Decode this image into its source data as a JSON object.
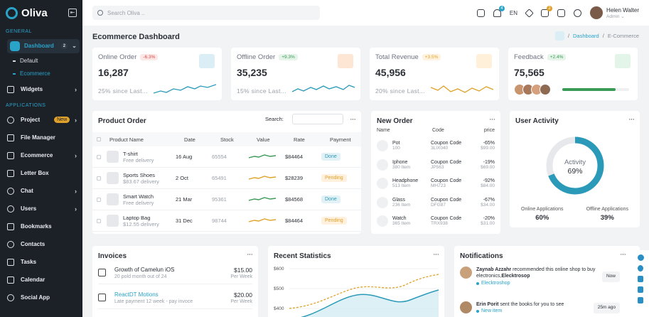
{
  "app": {
    "name": "Oliva"
  },
  "sidebar": {
    "general_label": "GENERAL",
    "dashboard_label": "Dashboard",
    "dashboard_sub": [
      "Default",
      "Ecommerce"
    ],
    "widgets_label": "Widgets",
    "applications_label": "APPLICATIONS",
    "items": [
      {
        "label": "Project",
        "badge": "New"
      },
      {
        "label": "File Manager"
      },
      {
        "label": "Ecommerce"
      },
      {
        "label": "Letter Box"
      },
      {
        "label": "Chat"
      },
      {
        "label": "Users"
      },
      {
        "label": "Bookmarks"
      },
      {
        "label": "Contacts"
      },
      {
        "label": "Tasks"
      },
      {
        "label": "Calendar"
      },
      {
        "label": "Social App"
      }
    ]
  },
  "topbar": {
    "search_placeholder": "Search Oliva ..",
    "notif_count": "4",
    "lang": "EN",
    "cart_count": "2",
    "user_name": "Helen Walter",
    "user_role": "Admin"
  },
  "page": {
    "title": "Ecommerce Dashboard",
    "crumb_1": "Dashboard",
    "crumb_2": "E-Commerce"
  },
  "stats": [
    {
      "label": "Online Order",
      "change": "-6.3%",
      "value": "16,287",
      "since": "25% since Last...",
      "color": "#2a9ab8"
    },
    {
      "label": "Offline Order",
      "change": "+9.3%",
      "value": "35,235",
      "since": "15% since Last...",
      "color": "#2a9ab8"
    },
    {
      "label": "Total Revenue",
      "change": "+3.5%",
      "value": "45,956",
      "since": "20% since Last...",
      "color": "#e0a22a"
    },
    {
      "label": "Feedback",
      "change": "+2.4%",
      "value": "75,565",
      "progress": 0.8
    }
  ],
  "product_order": {
    "title": "Product Order",
    "search_label": "Search:",
    "headers": [
      "Product Name",
      "Date",
      "Stock",
      "Value",
      "Rate",
      "Payment"
    ],
    "rows": [
      {
        "name": "T-shirt",
        "sub": "Free delivery",
        "date": "16 Aug",
        "stock": "65554",
        "rate": "$84464",
        "payment": "Done",
        "trend": "#3a9b56"
      },
      {
        "name": "Sports Shoes",
        "sub": "$83.67 delivery",
        "date": "2 Oct",
        "stock": "65491",
        "rate": "$28239",
        "payment": "Pending",
        "trend": "#e0a22a"
      },
      {
        "name": "Smart Watch",
        "sub": "Free delivery",
        "date": "21 Mar",
        "stock": "95361",
        "rate": "$84568",
        "payment": "Done",
        "trend": "#3a9b56"
      },
      {
        "name": "Laptop Bag",
        "sub": "$12.55 delivery",
        "date": "31 Dec",
        "stock": "98744",
        "rate": "$84464",
        "payment": "Pending",
        "trend": "#e0a22a"
      }
    ]
  },
  "new_order": {
    "title": "New Order",
    "headers": [
      "Name",
      "Code",
      "price"
    ],
    "rows": [
      {
        "name": "Pot",
        "qty": "100",
        "code": "Coupon Code",
        "code_id": "3LIX040",
        "pct": "-65%",
        "price": "$99.00"
      },
      {
        "name": "Iphone",
        "qty": "380 Item",
        "code": "Coupon Code",
        "code_id": "JP563",
        "pct": "-19%",
        "price": "$69.00"
      },
      {
        "name": "Headphone",
        "qty": "513 Item",
        "code": "Coupon Code",
        "code_id": "MH723",
        "pct": "-92%",
        "price": "$84.00"
      },
      {
        "name": "Glass",
        "qty": "236 Item",
        "code": "Coupon Code",
        "code_id": "DFG87",
        "pct": "-67%",
        "price": "$34.00"
      },
      {
        "name": "Watch",
        "qty": "365 Item",
        "code": "Coupon Code",
        "code_id": "TRX938",
        "pct": "-20%",
        "price": "$31.00"
      }
    ]
  },
  "user_activity": {
    "title": "User Activity",
    "center_label": "Activity",
    "center_value": "69%",
    "percent": 69,
    "online_label": "Online Applications",
    "online_value": "60%",
    "offline_label": "Offline Applications",
    "offline_value": "39%"
  },
  "invoices": {
    "title": "Invoices",
    "rows": [
      {
        "title": "Growth of Camelun iOS",
        "sub": "20 pold month out of 24",
        "amount": "$15.00",
        "period": "Per Week"
      },
      {
        "title": "ReactDT Motions",
        "sub": "Late payment 12 week - pay invoce",
        "amount": "$20.00",
        "period": "Per Week"
      }
    ]
  },
  "recent_stats": {
    "title": "Recent Statistics",
    "ticks": [
      "$600",
      "$500",
      "$400"
    ]
  },
  "notifications": {
    "title": "Notifications",
    "items": [
      {
        "name": "Zaynab Azzahr",
        "text": " recommended this online shop to buy electronics,",
        "target": "Elecktrosop",
        "tag": "Elecktroshop",
        "time": "Now"
      },
      {
        "name": "Erin Porit",
        "text": " sent the books for you to see",
        "target": "",
        "tag": "New item",
        "time": "25m ago"
      }
    ]
  }
}
